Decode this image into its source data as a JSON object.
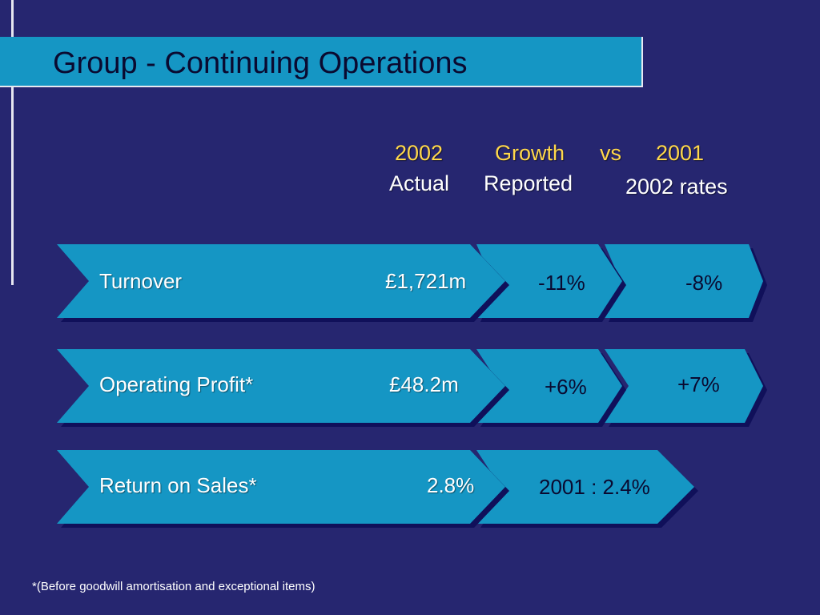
{
  "slide": {
    "title": "Group - Continuing Operations",
    "footnote": "*(Before goodwill amortisation and exceptional items)"
  },
  "headers": {
    "actual_year": "2002",
    "actual_label": "Actual",
    "growth_label": "Growth",
    "reported_label": "Reported",
    "vs_label": "vs",
    "prior_year": "2001",
    "rates_label": "2002 rates"
  },
  "rows": [
    {
      "label": "Turnover",
      "actual": "£1,721m",
      "growth_reported": "-11%",
      "growth_2002_rates": "-8%"
    },
    {
      "label": "Operating Profit*",
      "actual": "£48.2m",
      "growth_reported": "+6%",
      "growth_2002_rates": "+7%"
    },
    {
      "label": "Return on Sales*",
      "actual": "2.8%",
      "comparison": "2001 : 2.4%"
    }
  ],
  "colors": {
    "background": "#262670",
    "chevron_fill": "#1596c4",
    "chevron_shadow": "#10105a",
    "header_highlight": "#ffd84a"
  }
}
